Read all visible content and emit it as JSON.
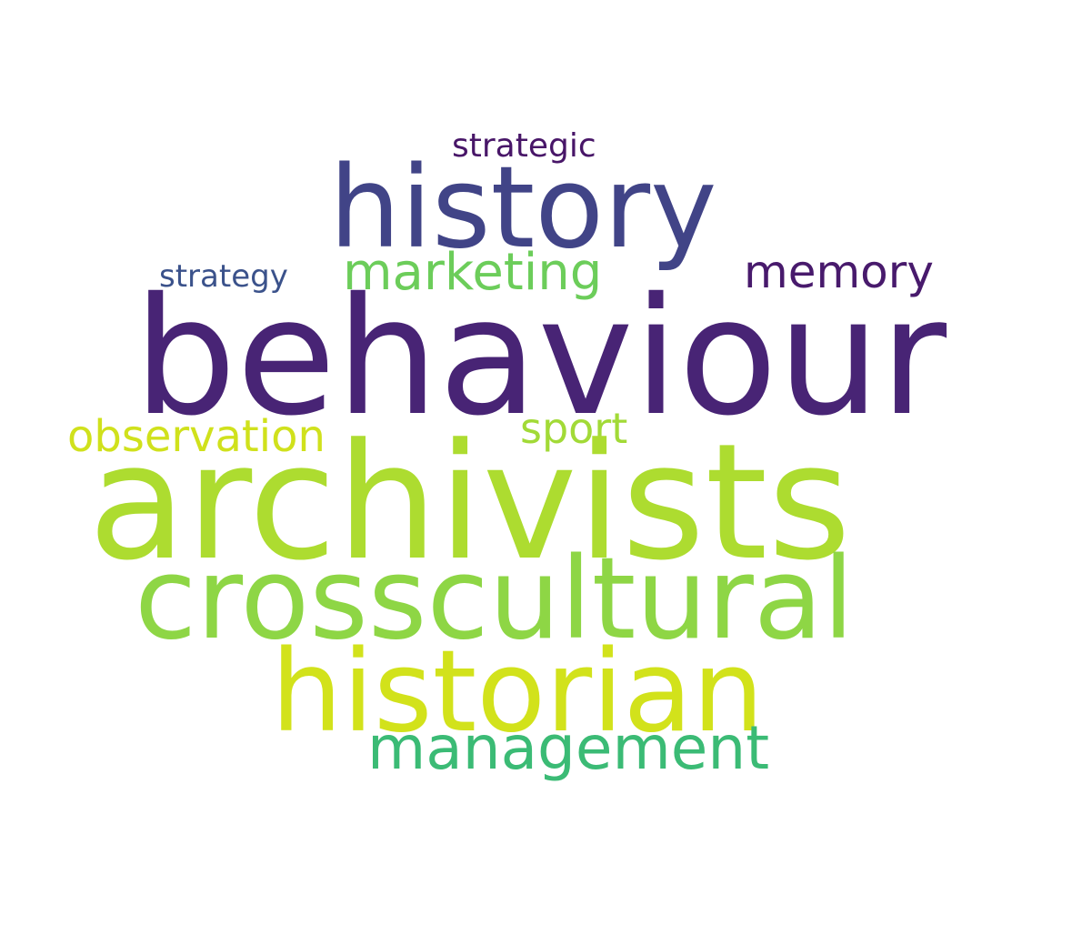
{
  "words": [
    {
      "key": "strategic",
      "text": "strategic",
      "color": "#481668"
    },
    {
      "key": "history",
      "text": "history",
      "color": "#414487"
    },
    {
      "key": "strategy",
      "text": "strategy",
      "color": "#3b528b"
    },
    {
      "key": "marketing",
      "text": "marketing",
      "color": "#6ccd5a"
    },
    {
      "key": "memory",
      "text": "memory",
      "color": "#481a6c"
    },
    {
      "key": "behaviour",
      "text": "behaviour",
      "color": "#482475"
    },
    {
      "key": "observation",
      "text": "observation",
      "color": "#d0e11c"
    },
    {
      "key": "sport",
      "text": "sport",
      "color": "#a2da37"
    },
    {
      "key": "archivists",
      "text": "archivists",
      "color": "#addc30"
    },
    {
      "key": "crosscultural",
      "text": "crosscultural",
      "color": "#8ed645"
    },
    {
      "key": "historian",
      "text": "historian",
      "color": "#d2e21b"
    },
    {
      "key": "management",
      "text": "management",
      "color": "#3bbb75"
    }
  ]
}
